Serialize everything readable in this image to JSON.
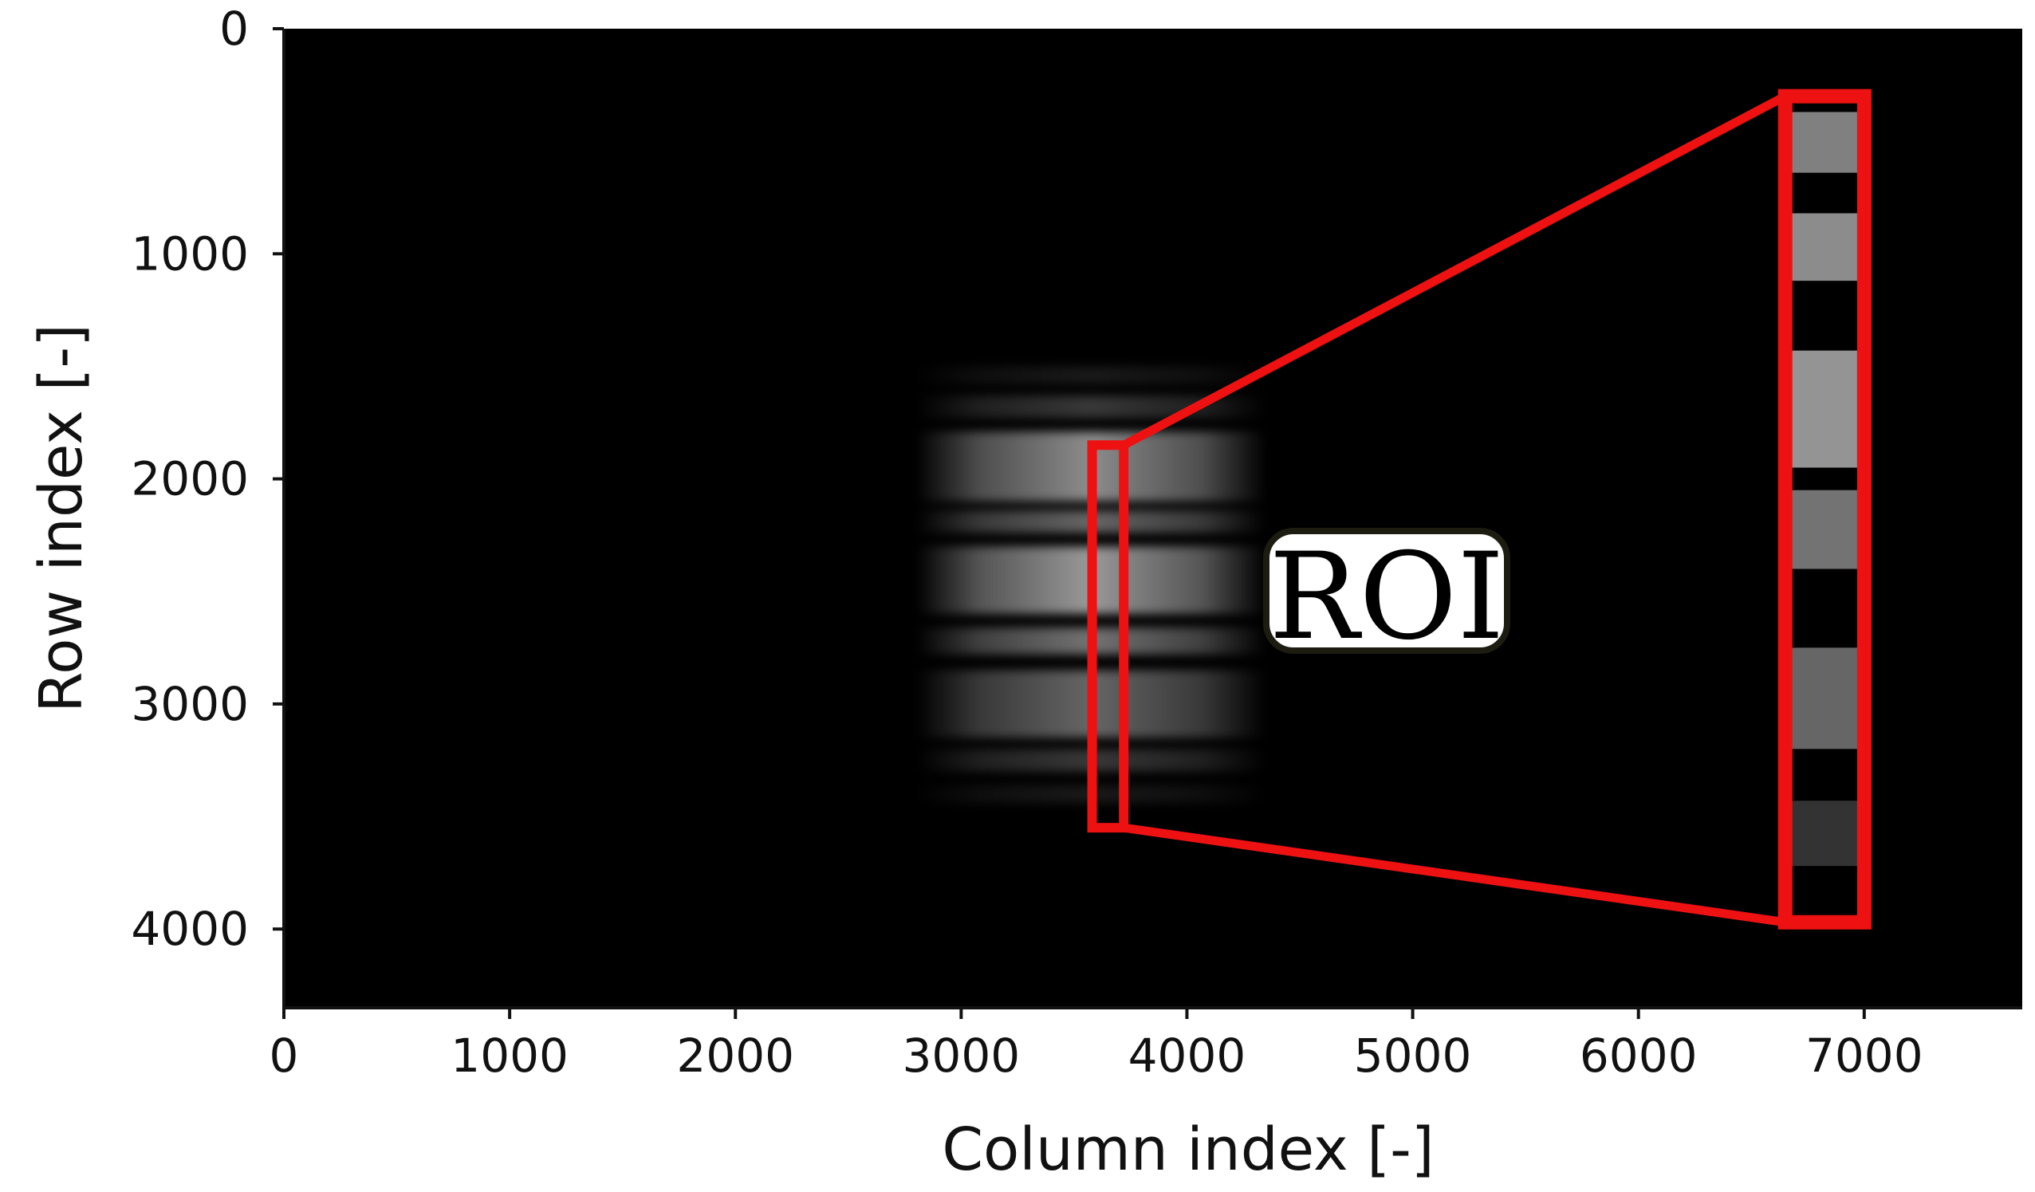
{
  "chart_data": {
    "type": "heatmap",
    "title": "",
    "xlabel": "Column index [-]",
    "ylabel": "Row index [-]",
    "xlim": [
      0,
      7700
    ],
    "ylim": [
      4350,
      0
    ],
    "x_ticks": [
      0,
      1000,
      2000,
      3000,
      4000,
      5000,
      6000,
      7000
    ],
    "y_ticks": [
      0,
      1000,
      2000,
      3000,
      4000
    ],
    "grid": false,
    "colormap": "gray",
    "background_color": "#000000",
    "fringe_pattern": {
      "column_range": [
        2800,
        4350
      ],
      "bands": [
        {
          "row_start": 1500,
          "row_end": 1580,
          "intensity": 0.1
        },
        {
          "row_start": 1630,
          "row_end": 1730,
          "intensity": 0.22
        },
        {
          "row_start": 1790,
          "row_end": 2100,
          "intensity": 0.55
        },
        {
          "row_start": 2140,
          "row_end": 2240,
          "intensity": 0.4
        },
        {
          "row_start": 2300,
          "row_end": 2600,
          "intensity": 0.6
        },
        {
          "row_start": 2660,
          "row_end": 2780,
          "intensity": 0.45
        },
        {
          "row_start": 2850,
          "row_end": 3150,
          "intensity": 0.4
        },
        {
          "row_start": 3200,
          "row_end": 3300,
          "intensity": 0.22
        },
        {
          "row_start": 3360,
          "row_end": 3440,
          "intensity": 0.1
        }
      ]
    },
    "roi": {
      "label": "ROI",
      "color": "#ee1111",
      "source_box": {
        "col_start": 3580,
        "col_end": 3720,
        "row_start": 1850,
        "row_end": 3550
      },
      "zoom_box": {
        "col_start": 6650,
        "col_end": 7000,
        "row_start": 300,
        "row_end": 3970
      },
      "zoom_bands": [
        {
          "row_start": 370,
          "row_end": 640,
          "intensity": 0.5
        },
        {
          "row_start": 820,
          "row_end": 1120,
          "intensity": 0.55
        },
        {
          "row_start": 1430,
          "row_end": 1950,
          "intensity": 0.58
        },
        {
          "row_start": 2050,
          "row_end": 2400,
          "intensity": 0.45
        },
        {
          "row_start": 2750,
          "row_end": 3200,
          "intensity": 0.4
        },
        {
          "row_start": 3430,
          "row_end": 3720,
          "intensity": 0.2
        }
      ]
    }
  }
}
